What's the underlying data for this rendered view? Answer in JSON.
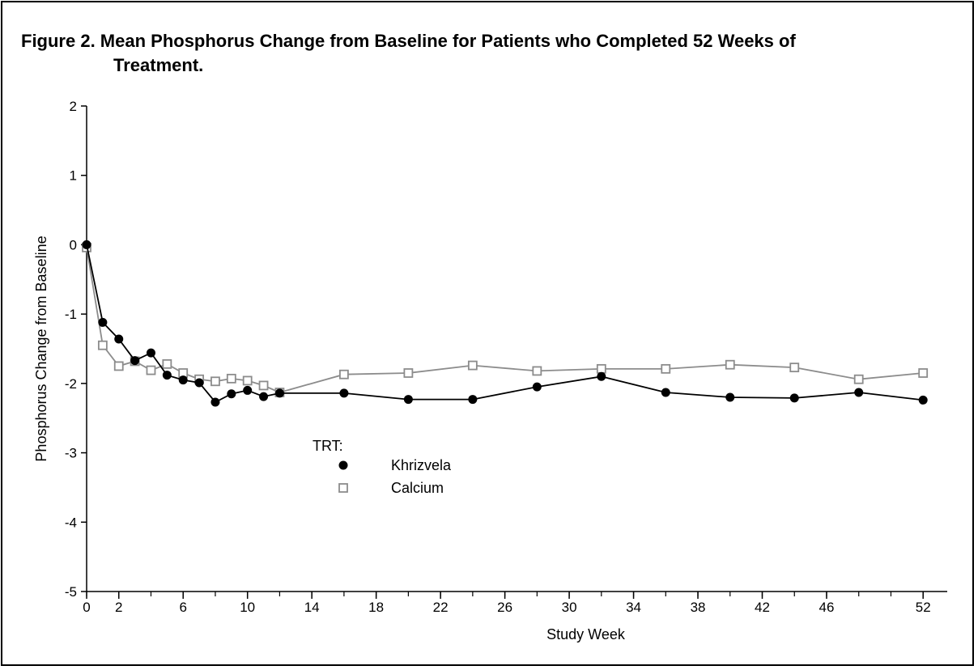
{
  "figure": {
    "title_line1": "Figure 2. Mean Phosphorus Change from Baseline for Patients who Completed 52 Weeks of",
    "title_line2": "Treatment."
  },
  "chart_data": {
    "type": "line",
    "xlabel": "Study Week",
    "ylabel": "Phosphorus Change from Baseline",
    "xlim": [
      0,
      53.5
    ],
    "ylim": [
      -5,
      2
    ],
    "x_ticks": [
      0,
      2,
      6,
      10,
      14,
      18,
      22,
      26,
      30,
      34,
      38,
      42,
      46,
      52
    ],
    "x_minor_ticks": [
      0,
      2,
      4,
      6,
      8,
      10,
      12,
      14,
      16,
      18,
      20,
      22,
      24,
      26,
      28,
      30,
      32,
      34,
      36,
      38,
      40,
      42,
      44,
      46,
      48,
      50,
      52
    ],
    "y_ticks": [
      2,
      1,
      0,
      -1,
      -2,
      -3,
      -4,
      -5
    ],
    "grid": false,
    "legend": {
      "title": "TRT:",
      "placement": "center-left"
    },
    "series": [
      {
        "name": "Khrizvela",
        "marker": "filled-circle",
        "color": "#000000",
        "x": [
          0,
          1,
          2,
          3,
          4,
          5,
          6,
          7,
          8,
          9,
          10,
          11,
          12,
          16,
          20,
          24,
          28,
          32,
          36,
          40,
          44,
          48,
          52
        ],
        "values": [
          0.0,
          -1.12,
          -1.36,
          -1.67,
          -1.56,
          -1.88,
          -1.95,
          -1.99,
          -2.27,
          -2.15,
          -2.1,
          -2.19,
          -2.14,
          -2.14,
          -2.23,
          -2.23,
          -2.05,
          -1.9,
          -2.13,
          -2.2,
          -2.21,
          -2.13,
          -2.24
        ]
      },
      {
        "name": "Calcium",
        "marker": "open-square",
        "color": "#8c8c8c",
        "x": [
          0,
          1,
          2,
          3,
          4,
          5,
          6,
          7,
          8,
          9,
          10,
          11,
          12,
          16,
          20,
          24,
          28,
          32,
          36,
          40,
          44,
          48,
          52
        ],
        "values": [
          -0.04,
          -1.45,
          -1.75,
          -1.68,
          -1.81,
          -1.72,
          -1.85,
          -1.94,
          -1.97,
          -1.93,
          -1.96,
          -2.03,
          -2.13,
          -1.87,
          -1.85,
          -1.74,
          -1.82,
          -1.79,
          -1.79,
          -1.73,
          -1.77,
          -1.94,
          -1.85
        ]
      }
    ]
  }
}
